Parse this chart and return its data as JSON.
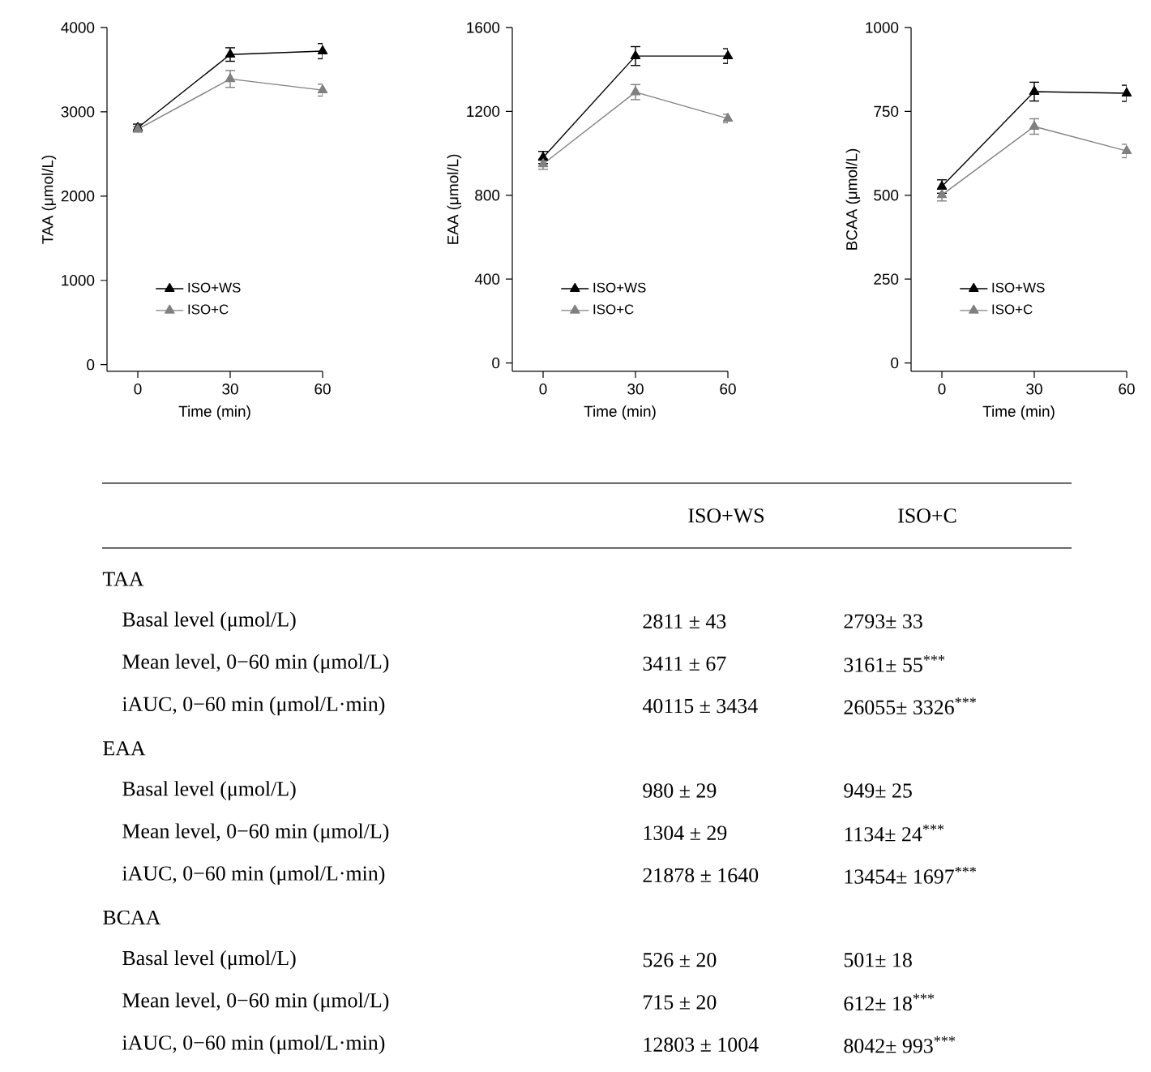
{
  "chart_data": [
    {
      "type": "line",
      "xlabel": "Time (min)",
      "ylabel": "TAA (μmol/L)",
      "x": [
        0,
        30,
        60
      ],
      "xlim": [
        -10,
        60
      ],
      "xticks": [
        0,
        30,
        60
      ],
      "ylim": [
        -80,
        4000
      ],
      "yticks": [
        0,
        1000,
        2000,
        3000,
        4000
      ],
      "marker": "triangle",
      "legend": "bottom left",
      "series": [
        {
          "name": "ISO+WS",
          "color": "#000000",
          "values": [
            2811,
            3680,
            3720
          ],
          "errors": [
            43,
            80,
            90
          ]
        },
        {
          "name": "ISO+C",
          "color": "#808080",
          "values": [
            2793,
            3390,
            3257
          ],
          "errors": [
            33,
            100,
            70
          ]
        }
      ]
    },
    {
      "type": "line",
      "xlabel": "Time (min)",
      "ylabel": "EAA (μmol/L)",
      "x": [
        0,
        30,
        60
      ],
      "xlim": [
        -10,
        60
      ],
      "xticks": [
        0,
        30,
        60
      ],
      "ylim": [
        -40,
        1600
      ],
      "yticks": [
        0,
        400,
        800,
        1200,
        1600
      ],
      "marker": "triangle",
      "legend": "bottom left",
      "series": [
        {
          "name": "ISO+WS",
          "color": "#000000",
          "values": [
            980,
            1464,
            1464
          ],
          "errors": [
            29,
            45,
            35
          ]
        },
        {
          "name": "ISO+C",
          "color": "#808080",
          "values": [
            949,
            1292,
            1166
          ],
          "errors": [
            25,
            36,
            20
          ]
        }
      ]
    },
    {
      "type": "line",
      "xlabel": "Time (min)",
      "ylabel": "BCAA (μmol/L)",
      "x": [
        0,
        30,
        60
      ],
      "xlim": [
        -10,
        60
      ],
      "xticks": [
        0,
        30,
        60
      ],
      "ylim": [
        -25,
        1000
      ],
      "yticks": [
        0,
        250,
        500,
        750,
        1000
      ],
      "marker": "triangle",
      "legend": "bottom left",
      "series": [
        {
          "name": "ISO+WS",
          "color": "#000000",
          "values": [
            526,
            809,
            804
          ],
          "errors": [
            20,
            28,
            24
          ]
        },
        {
          "name": "ISO+C",
          "color": "#808080",
          "values": [
            501,
            705,
            632
          ],
          "errors": [
            18,
            23,
            20
          ]
        }
      ]
    },
    {
      "type": "other",
      "annotations": [
        "ISO+WS",
        "ISO+C",
        "TAA",
        "Basal level (μmol/L)",
        "2811 ± 43",
        "2793± 33",
        "Mean level, 0−60 min (μmol/L)",
        "3411 ± 67",
        "3161± 55$^{***}$",
        "iAUC, 0−60 min (μmol/L·min)",
        "40115 ± 3434",
        "26055± 3326$^{***}$",
        "EAA",
        "Basal level (μmol/L)",
        "980 ± 29",
        "949± 25",
        "Mean level, 0−60 min (μmol/L)",
        "1304 ± 29",
        "1134± 24$^{***}$",
        "iAUC, 0−60 min (μmol/L·min)",
        "21878 ± 1640",
        "13454± 1697$^{***}$",
        "BCAA",
        "Basal level (μmol/L)",
        "526 ± 20",
        "501± 18",
        "Mean level, 0−60 min (μmol/L)",
        "715 ± 20",
        "612± 18$^{***}$",
        "iAUC, 0−60 min (μmol/L·min)",
        "12803 ± 1004",
        "8042± 993$^{***}$"
      ]
    }
  ]
}
